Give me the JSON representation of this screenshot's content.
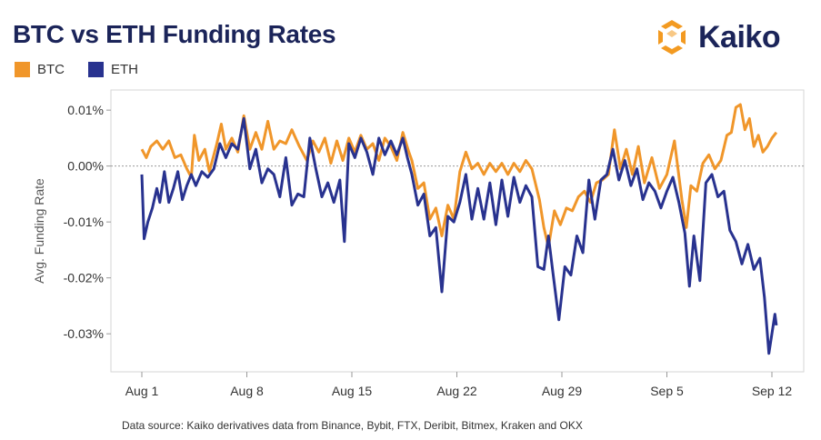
{
  "title": "BTC vs ETH Funding Rates",
  "brand": {
    "name": "Kaiko",
    "icon": "kaiko-logo-icon",
    "color": "#f39a21",
    "text_color": "#1b2459"
  },
  "legend": [
    {
      "name": "BTC",
      "color": "#f0962a"
    },
    {
      "name": "ETH",
      "color": "#28328f"
    }
  ],
  "source": "Data source: Kaiko derivatives data from Binance, Bybit, FTX, Deribit, Bitmex, Kraken and OKX",
  "chart_data": {
    "type": "line",
    "ylabel": "Avg. Funding Rate",
    "xlabel": "",
    "ylim": [
      -0.0368,
      0.0136
    ],
    "xlim": [
      0,
      44
    ],
    "y_ticks": [
      {
        "value": 0.01,
        "label": "0.01%"
      },
      {
        "value": 0.0,
        "label": "0.00%"
      },
      {
        "value": -0.01,
        "label": "-0.01%"
      },
      {
        "value": -0.02,
        "label": "-0.02%"
      },
      {
        "value": -0.03,
        "label": "-0.03%"
      }
    ],
    "x_ticks": [
      {
        "value": 0,
        "label": "Aug 1"
      },
      {
        "value": 7,
        "label": "Aug 8"
      },
      {
        "value": 14,
        "label": "Aug 15"
      },
      {
        "value": 21,
        "label": "Aug 22"
      },
      {
        "value": 28,
        "label": "Aug 29"
      },
      {
        "value": 35,
        "label": "Sep 5"
      },
      {
        "value": 42,
        "label": "Sep 12"
      }
    ],
    "zero_line": true,
    "grid": false,
    "series": [
      {
        "name": "BTC",
        "color": "#f0962a",
        "points": [
          [
            0,
            0.003
          ],
          [
            0.3,
            0.0015
          ],
          [
            0.6,
            0.0035
          ],
          [
            1,
            0.0045
          ],
          [
            1.4,
            0.003
          ],
          [
            1.8,
            0.0045
          ],
          [
            2.2,
            0.0015
          ],
          [
            2.6,
            0.002
          ],
          [
            3,
            -0.0005
          ],
          [
            3.3,
            -0.002
          ],
          [
            3.5,
            0.0055
          ],
          [
            3.8,
            0.001
          ],
          [
            4.2,
            0.003
          ],
          [
            4.5,
            -0.001
          ],
          [
            5,
            0.004
          ],
          [
            5.3,
            0.0075
          ],
          [
            5.6,
            0.003
          ],
          [
            6,
            0.005
          ],
          [
            6.4,
            0.0025
          ],
          [
            6.8,
            0.009
          ],
          [
            7.2,
            0.003
          ],
          [
            7.6,
            0.006
          ],
          [
            8,
            0.003
          ],
          [
            8.4,
            0.008
          ],
          [
            8.8,
            0.003
          ],
          [
            9.2,
            0.0045
          ],
          [
            9.6,
            0.004
          ],
          [
            10,
            0.0065
          ],
          [
            10.5,
            0.0035
          ],
          [
            11,
            0.001
          ],
          [
            11.4,
            0.0045
          ],
          [
            11.8,
            0.0025
          ],
          [
            12.2,
            0.005
          ],
          [
            12.6,
            0.0005
          ],
          [
            13,
            0.0045
          ],
          [
            13.4,
            0.001
          ],
          [
            13.8,
            0.005
          ],
          [
            14.2,
            0.0025
          ],
          [
            14.6,
            0.0055
          ],
          [
            15,
            0.003
          ],
          [
            15.4,
            0.004
          ],
          [
            15.8,
            0.001
          ],
          [
            16.2,
            0.005
          ],
          [
            16.6,
            0.0035
          ],
          [
            17,
            0.001
          ],
          [
            17.4,
            0.006
          ],
          [
            17.8,
            0.0025
          ],
          [
            18,
            0.001
          ],
          [
            18.4,
            -0.004
          ],
          [
            18.8,
            -0.003
          ],
          [
            19.2,
            -0.0095
          ],
          [
            19.6,
            -0.0075
          ],
          [
            20,
            -0.0125
          ],
          [
            20.4,
            -0.007
          ],
          [
            20.8,
            -0.0095
          ],
          [
            21.2,
            -0.001
          ],
          [
            21.6,
            0.0025
          ],
          [
            22,
            -0.0005
          ],
          [
            22.4,
            0.0005
          ],
          [
            22.8,
            -0.0015
          ],
          [
            23.2,
            0.0005
          ],
          [
            23.6,
            -0.001
          ],
          [
            24,
            0.0005
          ],
          [
            24.4,
            -0.0015
          ],
          [
            24.8,
            0.0005
          ],
          [
            25.2,
            -0.001
          ],
          [
            25.6,
            0.001
          ],
          [
            26,
            -0.0005
          ],
          [
            26.5,
            -0.006
          ],
          [
            26.8,
            -0.011
          ],
          [
            27.1,
            -0.0145
          ],
          [
            27.5,
            -0.008
          ],
          [
            27.9,
            -0.0105
          ],
          [
            28.3,
            -0.0075
          ],
          [
            28.7,
            -0.008
          ],
          [
            29.1,
            -0.0055
          ],
          [
            29.5,
            -0.0045
          ],
          [
            29.9,
            -0.0065
          ],
          [
            30.3,
            -0.003
          ],
          [
            30.7,
            -0.0025
          ],
          [
            31.1,
            -0.0015
          ],
          [
            31.5,
            0.0065
          ],
          [
            31.9,
            -0.0005
          ],
          [
            32.3,
            0.003
          ],
          [
            32.7,
            -0.0015
          ],
          [
            33.1,
            0.0035
          ],
          [
            33.5,
            -0.003
          ],
          [
            34,
            0.0015
          ],
          [
            34.5,
            -0.004
          ],
          [
            35,
            -0.0015
          ],
          [
            35.5,
            0.0045
          ],
          [
            36,
            -0.006
          ],
          [
            36.3,
            -0.011
          ],
          [
            36.6,
            -0.0035
          ],
          [
            37,
            -0.0045
          ],
          [
            37.4,
            0.0005
          ],
          [
            37.8,
            0.002
          ],
          [
            38.2,
            -0.0005
          ],
          [
            38.6,
            0.001
          ],
          [
            39,
            0.0055
          ],
          [
            39.3,
            0.006
          ],
          [
            39.6,
            0.0105
          ],
          [
            39.9,
            0.011
          ],
          [
            40.2,
            0.0065
          ],
          [
            40.5,
            0.0085
          ],
          [
            40.8,
            0.0035
          ],
          [
            41.1,
            0.0055
          ],
          [
            41.4,
            0.0025
          ],
          [
            41.7,
            0.0035
          ],
          [
            42,
            0.005
          ],
          [
            42.3,
            0.006
          ]
        ]
      },
      {
        "name": "ETH",
        "color": "#28328f",
        "points": [
          [
            0,
            -0.0015
          ],
          [
            0.15,
            -0.013
          ],
          [
            0.4,
            -0.01
          ],
          [
            0.7,
            -0.0075
          ],
          [
            1,
            -0.004
          ],
          [
            1.2,
            -0.0065
          ],
          [
            1.5,
            -0.001
          ],
          [
            1.8,
            -0.0065
          ],
          [
            2.1,
            -0.004
          ],
          [
            2.4,
            -0.001
          ],
          [
            2.7,
            -0.006
          ],
          [
            3,
            -0.0035
          ],
          [
            3.3,
            -0.0015
          ],
          [
            3.6,
            -0.0035
          ],
          [
            4,
            -0.001
          ],
          [
            4.4,
            -0.002
          ],
          [
            4.8,
            -0.0005
          ],
          [
            5.2,
            0.004
          ],
          [
            5.6,
            0.0015
          ],
          [
            6,
            0.004
          ],
          [
            6.4,
            0.003
          ],
          [
            6.8,
            0.0085
          ],
          [
            7.2,
            -0.0005
          ],
          [
            7.6,
            0.003
          ],
          [
            8,
            -0.003
          ],
          [
            8.4,
            -0.0005
          ],
          [
            8.8,
            -0.0015
          ],
          [
            9.2,
            -0.0055
          ],
          [
            9.6,
            0.0015
          ],
          [
            10,
            -0.007
          ],
          [
            10.4,
            -0.005
          ],
          [
            10.8,
            -0.0055
          ],
          [
            11.2,
            0.005
          ],
          [
            11.6,
            -0.0005
          ],
          [
            12,
            -0.0055
          ],
          [
            12.4,
            -0.003
          ],
          [
            12.8,
            -0.0065
          ],
          [
            13.2,
            -0.0025
          ],
          [
            13.5,
            -0.0135
          ],
          [
            13.8,
            0.004
          ],
          [
            14.2,
            0.0015
          ],
          [
            14.6,
            0.005
          ],
          [
            15,
            0.0025
          ],
          [
            15.4,
            -0.0015
          ],
          [
            15.8,
            0.005
          ],
          [
            16.2,
            0.002
          ],
          [
            16.6,
            0.0045
          ],
          [
            17,
            0.002
          ],
          [
            17.4,
            0.005
          ],
          [
            17.7,
            0.0015
          ],
          [
            18,
            -0.0015
          ],
          [
            18.4,
            -0.007
          ],
          [
            18.8,
            -0.005
          ],
          [
            19.2,
            -0.0125
          ],
          [
            19.6,
            -0.011
          ],
          [
            20,
            -0.0225
          ],
          [
            20.4,
            -0.009
          ],
          [
            20.8,
            -0.01
          ],
          [
            21.2,
            -0.0065
          ],
          [
            21.6,
            -0.0015
          ],
          [
            22,
            -0.0095
          ],
          [
            22.4,
            -0.004
          ],
          [
            22.8,
            -0.0095
          ],
          [
            23.2,
            -0.003
          ],
          [
            23.6,
            -0.0105
          ],
          [
            24,
            -0.0025
          ],
          [
            24.4,
            -0.009
          ],
          [
            24.8,
            -0.002
          ],
          [
            25.2,
            -0.0065
          ],
          [
            25.6,
            -0.0035
          ],
          [
            26,
            -0.0055
          ],
          [
            26.4,
            -0.018
          ],
          [
            26.8,
            -0.0185
          ],
          [
            27.1,
            -0.0125
          ],
          [
            27.4,
            -0.019
          ],
          [
            27.8,
            -0.0275
          ],
          [
            28.2,
            -0.018
          ],
          [
            28.6,
            -0.0195
          ],
          [
            29,
            -0.0125
          ],
          [
            29.4,
            -0.0155
          ],
          [
            29.8,
            -0.0025
          ],
          [
            30.2,
            -0.0095
          ],
          [
            30.6,
            -0.0025
          ],
          [
            31,
            -0.0015
          ],
          [
            31.4,
            0.003
          ],
          [
            31.8,
            -0.0025
          ],
          [
            32.2,
            0.001
          ],
          [
            32.6,
            -0.0035
          ],
          [
            33,
            -0.0005
          ],
          [
            33.4,
            -0.006
          ],
          [
            33.8,
            -0.003
          ],
          [
            34.2,
            -0.0045
          ],
          [
            34.6,
            -0.0075
          ],
          [
            35,
            -0.0045
          ],
          [
            35.4,
            -0.002
          ],
          [
            35.8,
            -0.0065
          ],
          [
            36.2,
            -0.012
          ],
          [
            36.5,
            -0.0215
          ],
          [
            36.8,
            -0.0125
          ],
          [
            37.2,
            -0.0205
          ],
          [
            37.6,
            -0.003
          ],
          [
            38,
            -0.0015
          ],
          [
            38.4,
            -0.0055
          ],
          [
            38.8,
            -0.0045
          ],
          [
            39.2,
            -0.0115
          ],
          [
            39.6,
            -0.0135
          ],
          [
            40,
            -0.0175
          ],
          [
            40.4,
            -0.014
          ],
          [
            40.8,
            -0.0185
          ],
          [
            41.2,
            -0.0165
          ],
          [
            41.5,
            -0.0235
          ],
          [
            41.8,
            -0.0335
          ],
          [
            42,
            -0.03
          ],
          [
            42.2,
            -0.0265
          ],
          [
            42.3,
            -0.0285
          ]
        ]
      }
    ]
  }
}
